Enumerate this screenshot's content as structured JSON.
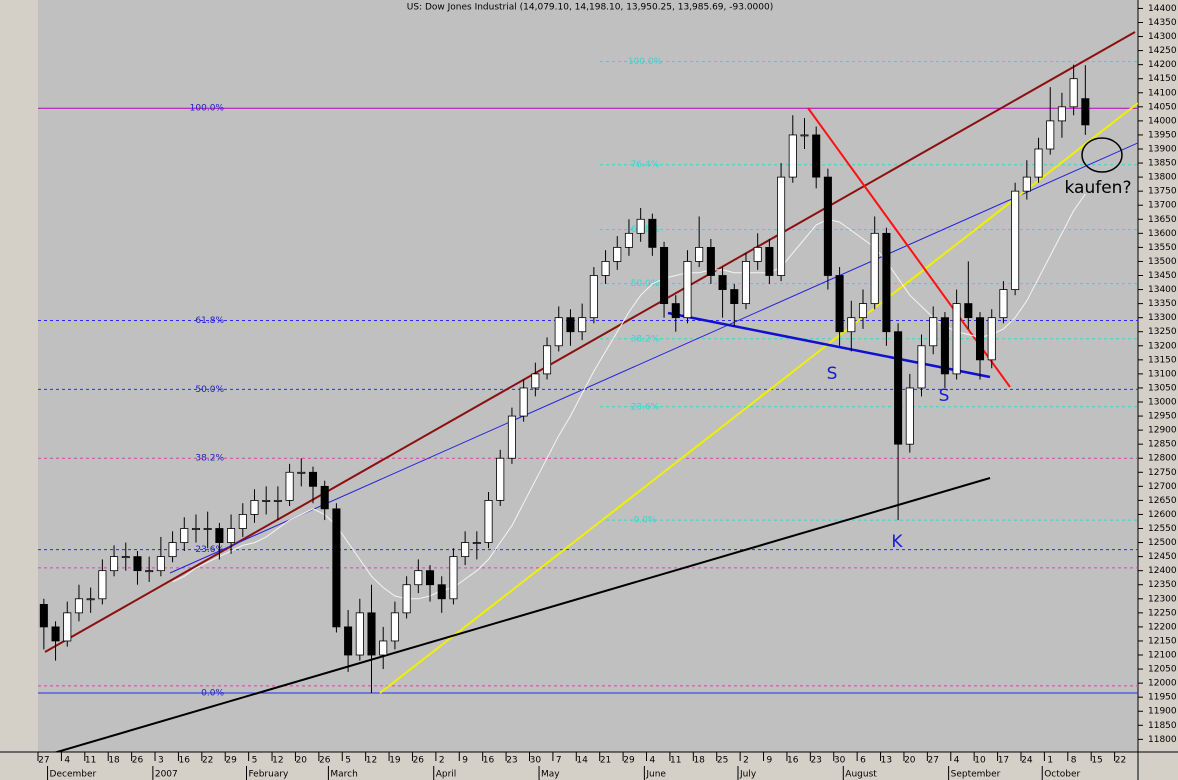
{
  "chart_data": {
    "type": "candlestick",
    "title": "US: Dow Jones Industrial (14,079.10, 14,198.10, 13,950.25, 13,985.69, -93.0000)",
    "categories": [
      "27",
      null,
      "4",
      null,
      "11",
      null,
      "18",
      null,
      "26",
      null,
      "3",
      null,
      "16",
      null,
      "22",
      null,
      "29",
      null,
      "5",
      null,
      "12",
      null,
      "20",
      null,
      "26",
      null,
      "5",
      null,
      "12",
      null,
      "19",
      null,
      "26",
      null,
      "2",
      null,
      "9",
      null,
      "16",
      null,
      "23",
      null,
      "30",
      null,
      "7",
      null,
      "14",
      null,
      "21",
      null,
      "29",
      null,
      "4",
      null,
      "11",
      null,
      "18",
      null,
      "25",
      null,
      "2",
      null,
      "9",
      null,
      "16",
      null,
      "23",
      null,
      "30",
      null,
      "6",
      null,
      "13",
      null,
      "20",
      null,
      "27",
      null,
      "4",
      null,
      "10",
      null,
      "17",
      null,
      "24",
      null,
      "1",
      null,
      "8",
      null,
      "15",
      null,
      "22",
      null
    ],
    "month_labels": [
      null,
      "December",
      null,
      null,
      null,
      null,
      null,
      null,
      null,
      null,
      "2007",
      null,
      null,
      null,
      null,
      null,
      null,
      null,
      "February",
      null,
      null,
      null,
      null,
      null,
      null,
      "March",
      null,
      null,
      null,
      null,
      null,
      null,
      null,
      null,
      "April",
      null,
      null,
      null,
      null,
      null,
      null,
      null,
      null,
      "May",
      null,
      null,
      null,
      null,
      null,
      null,
      null,
      null,
      "June",
      null,
      null,
      null,
      null,
      null,
      null,
      null,
      "July",
      null,
      null,
      null,
      null,
      null,
      null,
      null,
      null,
      "August",
      null,
      null,
      null,
      null,
      null,
      null,
      null,
      null,
      "September",
      null,
      null,
      null,
      null,
      null,
      null,
      null,
      "October",
      null,
      null,
      null,
      null,
      null,
      null,
      null
    ],
    "open": [
      12280,
      12200,
      12150,
      12250,
      12300,
      12300,
      12400,
      12450,
      12450,
      12400,
      12400,
      12450,
      12500,
      12550,
      12550,
      12550,
      12500,
      12550,
      12600,
      12650,
      12650,
      12650,
      12750,
      12750,
      12700,
      12620,
      12200,
      12100,
      12250,
      12100,
      12150,
      12250,
      12350,
      12400,
      12350,
      12300,
      12450,
      12500,
      12500,
      12650,
      12800,
      12950,
      13050,
      13100,
      13200,
      13300,
      13250,
      13300,
      13450,
      13500,
      13550,
      13600,
      13650,
      13550,
      13350,
      13300,
      13500,
      13550,
      13450,
      13400,
      13350,
      13500,
      13550,
      13450,
      13800,
      13950,
      13950,
      13800,
      13450,
      13250,
      13300,
      13350,
      13600,
      13250,
      12850,
      13050,
      13200,
      13300,
      13100,
      13350,
      13300,
      13150,
      13300,
      13400,
      13750,
      13800,
      13900,
      14000,
      14050,
      14079.1,
      null,
      null,
      null,
      null
    ],
    "high": [
      12300,
      12220,
      12290,
      12350,
      12340,
      12440,
      12490,
      12500,
      12470,
      12450,
      12520,
      12540,
      12590,
      12600,
      12610,
      12570,
      12600,
      12640,
      12690,
      12700,
      12700,
      12780,
      12800,
      12770,
      12720,
      12640,
      12260,
      12300,
      12350,
      12200,
      12290,
      12380,
      12440,
      12420,
      12380,
      12480,
      12540,
      12540,
      12680,
      12830,
      12980,
      13080,
      13140,
      13230,
      13340,
      13330,
      13350,
      13480,
      13540,
      13590,
      13650,
      13690,
      13670,
      13570,
      13380,
      13540,
      13660,
      13580,
      13480,
      13420,
      13530,
      13600,
      13580,
      13850,
      14020,
      14010,
      13980,
      13830,
      13480,
      13360,
      13400,
      13660,
      13620,
      13280,
      13100,
      13240,
      13340,
      13320,
      13400,
      13500,
      13320,
      13330,
      13430,
      13780,
      13860,
      13940,
      14120,
      14100,
      14200,
      14198.1,
      null,
      null,
      null,
      null
    ],
    "low": [
      12120,
      12080,
      12130,
      12220,
      12250,
      12280,
      12380,
      12400,
      12350,
      12360,
      12380,
      12430,
      12470,
      12500,
      12480,
      12440,
      12460,
      12520,
      12570,
      12600,
      12580,
      12630,
      12700,
      12640,
      12580,
      12180,
      12040,
      12080,
      11965,
      12050,
      12120,
      12230,
      12320,
      12290,
      12250,
      12280,
      12420,
      12440,
      12480,
      12630,
      12780,
      12930,
      13020,
      13080,
      13180,
      13200,
      13220,
      13280,
      13420,
      13470,
      13520,
      13570,
      13520,
      13300,
      13250,
      13280,
      13480,
      13420,
      13300,
      13270,
      13330,
      13470,
      13420,
      13430,
      13780,
      13900,
      13760,
      13400,
      13200,
      13180,
      13260,
      13330,
      13200,
      12580,
      12820,
      13020,
      13170,
      13050,
      13080,
      13260,
      13080,
      13120,
      13280,
      13380,
      13720,
      13780,
      13880,
      13940,
      14020,
      13950.25,
      null,
      null,
      null,
      null
    ],
    "close": [
      12200,
      12150,
      12250,
      12300,
      12300,
      12400,
      12450,
      12450,
      12400,
      12400,
      12450,
      12500,
      12550,
      12550,
      12550,
      12500,
      12550,
      12600,
      12650,
      12650,
      12650,
      12750,
      12750,
      12700,
      12620,
      12200,
      12100,
      12250,
      12100,
      12150,
      12250,
      12350,
      12400,
      12350,
      12300,
      12450,
      12500,
      12500,
      12650,
      12800,
      12950,
      13050,
      13100,
      13200,
      13300,
      13250,
      13300,
      13450,
      13500,
      13550,
      13600,
      13650,
      13550,
      13350,
      13300,
      13500,
      13550,
      13450,
      13400,
      13350,
      13500,
      13550,
      13450,
      13800,
      13950,
      13950,
      13800,
      13450,
      13250,
      13300,
      13350,
      13600,
      13250,
      12850,
      13050,
      13200,
      13300,
      13100,
      13350,
      13300,
      13150,
      13300,
      13400,
      13750,
      13800,
      13900,
      14000,
      14050,
      14150,
      13985.69,
      null,
      null,
      null,
      null
    ],
    "up_color": "#ffffff",
    "down_color": "#000000",
    "ma": {
      "color": "#f4f4f4",
      "values": [
        null,
        null,
        null,
        null,
        null,
        null,
        null,
        null,
        null,
        null,
        null,
        12360,
        12380,
        12410,
        12430,
        12450,
        12470,
        12490,
        12500,
        12520,
        12550,
        12580,
        12600,
        12620,
        12600,
        12560,
        12500,
        12440,
        12380,
        12340,
        12310,
        12300,
        12300,
        12310,
        12330,
        12340,
        12370,
        12400,
        12440,
        12500,
        12560,
        12640,
        12720,
        12800,
        12880,
        12950,
        13030,
        13110,
        13180,
        13250,
        13320,
        13380,
        13420,
        13440,
        13450,
        13460,
        13460,
        13470,
        13470,
        13460,
        13460,
        13460,
        13460,
        13480,
        13530,
        13580,
        13630,
        13650,
        13640,
        13610,
        13580,
        13550,
        13500,
        13440,
        13380,
        13340,
        13300,
        13270,
        13250,
        13240,
        13230,
        13240,
        13260,
        13300,
        13360,
        13440,
        13520,
        13600,
        13680,
        13740,
        null,
        null,
        null,
        null
      ]
    },
    "ylim": [
      11755,
      14430
    ],
    "yticks": [
      11800,
      11850,
      11900,
      11950,
      12000,
      12050,
      12100,
      12150,
      12200,
      12250,
      12300,
      12350,
      12400,
      12450,
      12500,
      12550,
      12600,
      12650,
      12700,
      12750,
      12800,
      12850,
      12900,
      12950,
      13000,
      13050,
      13100,
      13150,
      13200,
      13250,
      13300,
      13350,
      13400,
      13450,
      13500,
      13550,
      13600,
      13650,
      13700,
      13750,
      13800,
      13850,
      13900,
      13950,
      14000,
      14050,
      14100,
      14150,
      14200,
      14250,
      14300,
      14350,
      14400
    ],
    "fib_left": [
      {
        "value": 14045,
        "label": "100.0%",
        "color": "#c000c0",
        "dashed": false
      },
      {
        "value": 13290,
        "label": "61.8%",
        "color": "#2828ff",
        "dashed": true
      },
      {
        "value": 13045,
        "label": "50.0%",
        "color": "#2828ff",
        "dashed": true
      },
      {
        "value": 12800,
        "label": "38.2%",
        "color": "#e040b0",
        "dashed": true
      },
      {
        "value": 12475,
        "label": "23.6%",
        "color": "#2828ff",
        "dashed": true
      },
      {
        "value": 11965,
        "label": "0.0%",
        "color": "#2828ff",
        "dashed": false
      }
    ],
    "fib_right": [
      {
        "value": 14211,
        "label": "100.0%",
        "color": "#30d8d0",
        "dashed": true
      },
      {
        "value": 13844,
        "label": "76.4%",
        "color": "#30d8d0",
        "dashed": true
      },
      {
        "value": 13613,
        "label": "61.8%",
        "color": "#30d8d0",
        "dashed": true
      },
      {
        "value": 13421,
        "label": "50.0%",
        "color": "#30d8d0",
        "dashed": true
      },
      {
        "value": 13225,
        "label": "38.2%",
        "color": "#30d8d0",
        "dashed": true
      },
      {
        "value": 12983,
        "label": "23.6%",
        "color": "#30d8d0",
        "dashed": true
      },
      {
        "value": 12580,
        "label": "0.0%",
        "color": "#30d8d0",
        "dashed": true
      }
    ],
    "extra_levels": {
      "color": "#e040b0",
      "values": [
        12410,
        11990
      ]
    },
    "annotations": [
      "S",
      "S",
      "K",
      "kaufen?"
    ]
  }
}
